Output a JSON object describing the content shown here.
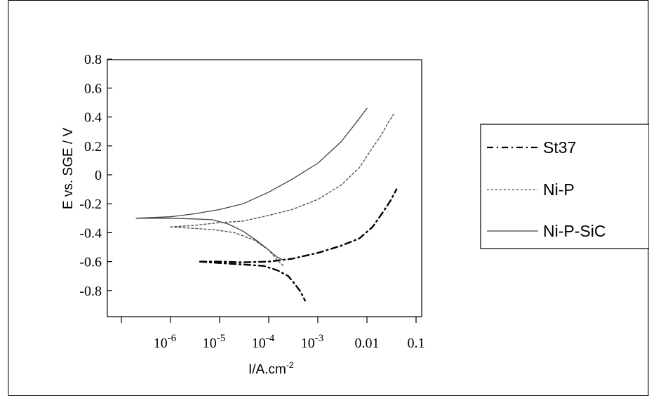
{
  "chart_data": {
    "type": "line",
    "title": "",
    "xlabel": "I/A.cm",
    "xlabel_superscript": "-2",
    "ylabel": "E vs. SGE / V",
    "x_scale": "log",
    "xlim": [
      1e-07,
      0.3
    ],
    "ylim": [
      -1.0,
      0.8
    ],
    "yticks": [
      {
        "value": 0.8,
        "label": "0.8"
      },
      {
        "value": 0.6,
        "label": "0.6"
      },
      {
        "value": 0.4,
        "label": "0.4"
      },
      {
        "value": 0.2,
        "label": "0.2"
      },
      {
        "value": 0,
        "label": "0"
      },
      {
        "value": -0.2,
        "label": "-0.2"
      },
      {
        "value": -0.4,
        "label": "-0.4"
      },
      {
        "value": -0.6,
        "label": "-0.6"
      },
      {
        "value": -0.8,
        "label": "-0.8"
      }
    ],
    "xticks": [
      {
        "value": 1e-07,
        "label": ""
      },
      {
        "value": 1e-06,
        "base": "10",
        "exp": "-6"
      },
      {
        "value": 1e-05,
        "base": "10",
        "exp": "-5"
      },
      {
        "value": 0.0001,
        "base": "10",
        "exp": "-4"
      },
      {
        "value": 0.001,
        "base": "10",
        "exp": "-3"
      },
      {
        "value": 0.01,
        "label": "0.01"
      },
      {
        "value": 0.1,
        "label": "0.1"
      }
    ],
    "legend_position": "right, outside plot",
    "grid": false,
    "series": [
      {
        "name": "St37",
        "style": "dash-dot",
        "color": "#000000",
        "cathodic": [
          [
            4e-06,
            -0.6
          ],
          [
            1e-05,
            -0.61
          ],
          [
            3e-05,
            -0.62
          ],
          [
            8e-05,
            -0.63
          ],
          [
            0.00015,
            -0.66
          ],
          [
            0.00025,
            -0.7
          ],
          [
            0.00035,
            -0.76
          ],
          [
            0.00045,
            -0.81
          ],
          [
            0.00055,
            -0.87
          ]
        ],
        "anodic": [
          [
            4e-06,
            -0.6
          ],
          [
            1e-05,
            -0.6
          ],
          [
            3e-05,
            -0.605
          ],
          [
            0.0001,
            -0.6
          ],
          [
            0.0003,
            -0.58
          ],
          [
            0.001,
            -0.54
          ],
          [
            0.003,
            -0.49
          ],
          [
            0.007,
            -0.44
          ],
          [
            0.013,
            -0.36
          ],
          [
            0.02,
            -0.27
          ],
          [
            0.03,
            -0.18
          ],
          [
            0.04,
            -0.1
          ]
        ]
      },
      {
        "name": "Ni-P",
        "style": "dotted",
        "color": "#555555",
        "cathodic": [
          [
            1e-06,
            -0.36
          ],
          [
            3e-06,
            -0.37
          ],
          [
            8e-06,
            -0.38
          ],
          [
            2e-05,
            -0.4
          ],
          [
            5e-05,
            -0.45
          ],
          [
            0.0001,
            -0.52
          ],
          [
            0.00015,
            -0.59
          ],
          [
            0.0002,
            -0.63
          ]
        ],
        "anodic": [
          [
            1e-06,
            -0.36
          ],
          [
            3e-06,
            -0.35
          ],
          [
            1e-05,
            -0.33
          ],
          [
            3e-05,
            -0.32
          ],
          [
            0.0001,
            -0.28
          ],
          [
            0.0003,
            -0.24
          ],
          [
            0.001,
            -0.17
          ],
          [
            0.003,
            -0.07
          ],
          [
            0.007,
            0.05
          ],
          [
            0.012,
            0.17
          ],
          [
            0.02,
            0.28
          ],
          [
            0.027,
            0.36
          ],
          [
            0.035,
            0.42
          ]
        ]
      },
      {
        "name": "Ni-P-SiC",
        "style": "solid",
        "color": "#444444",
        "cathodic": [
          [
            2e-07,
            -0.3
          ],
          [
            1e-06,
            -0.3
          ],
          [
            3e-06,
            -0.305
          ],
          [
            7e-06,
            -0.31
          ],
          [
            1.5e-05,
            -0.34
          ],
          [
            3e-05,
            -0.39
          ],
          [
            6e-05,
            -0.46
          ],
          [
            0.0001,
            -0.52
          ],
          [
            0.00015,
            -0.57
          ],
          [
            0.0002,
            -0.59
          ]
        ],
        "anodic": [
          [
            2e-07,
            -0.3
          ],
          [
            1e-06,
            -0.29
          ],
          [
            3e-06,
            -0.27
          ],
          [
            1e-05,
            -0.24
          ],
          [
            3e-05,
            -0.2
          ],
          [
            0.0001,
            -0.12
          ],
          [
            0.0003,
            -0.03
          ],
          [
            0.001,
            0.08
          ],
          [
            0.003,
            0.23
          ],
          [
            0.006,
            0.36
          ],
          [
            0.01,
            0.46
          ]
        ]
      }
    ]
  }
}
